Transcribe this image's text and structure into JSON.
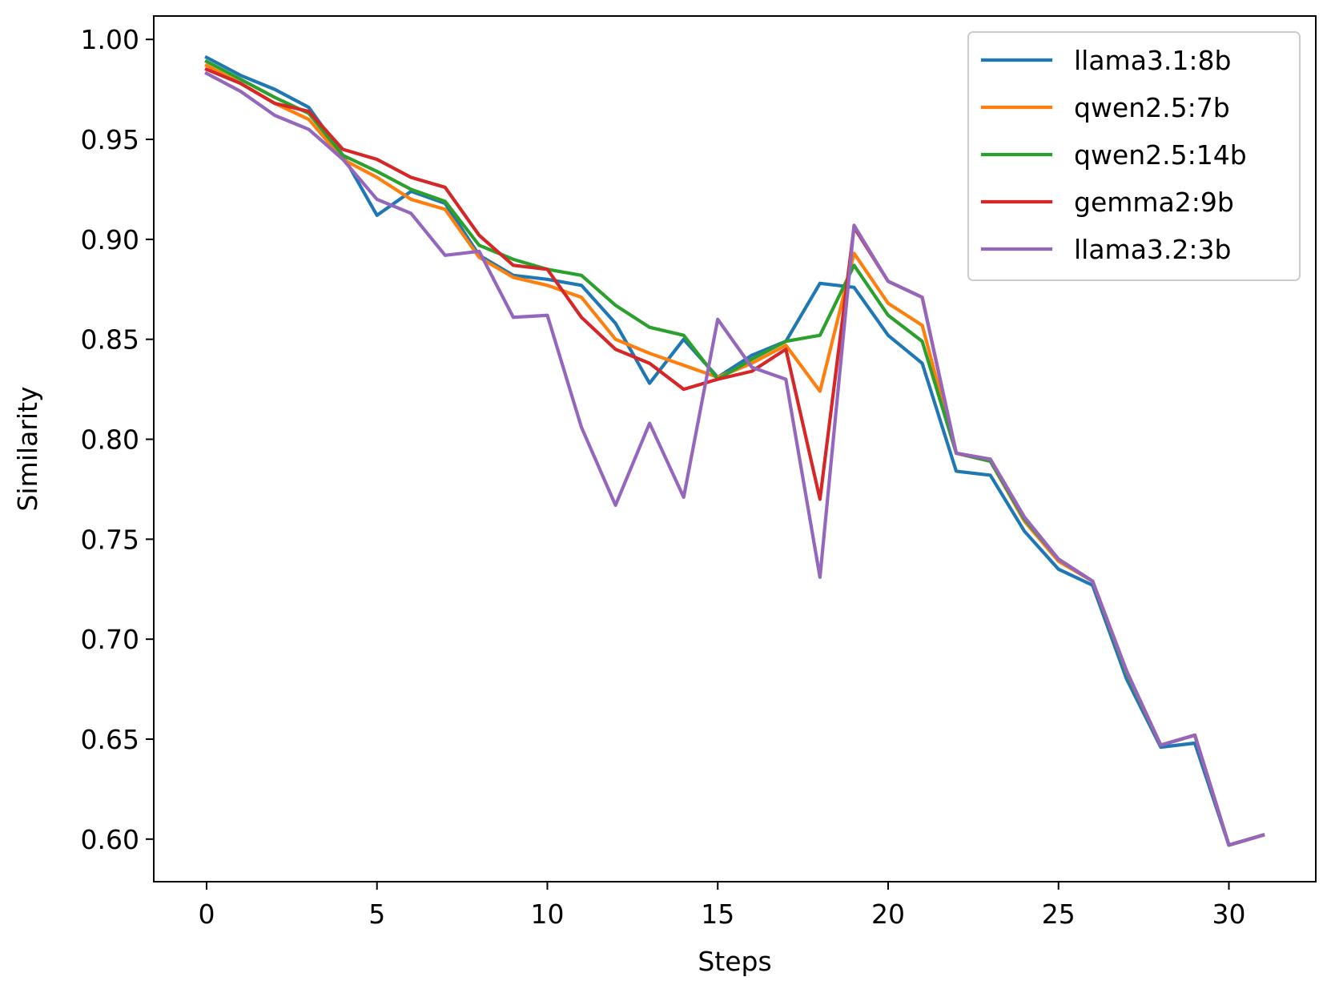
{
  "chart_data": {
    "type": "line",
    "title": "",
    "xlabel": "Steps",
    "ylabel": "Similarity",
    "xlim": [
      -1.55,
      32.55
    ],
    "ylim": [
      0.5787,
      1.0117
    ],
    "xticks": [
      0,
      5,
      10,
      15,
      20,
      25,
      30
    ],
    "yticks": [
      0.6,
      0.65,
      0.7,
      0.75,
      0.8,
      0.85,
      0.9,
      0.95,
      1.0
    ],
    "ytick_labels": [
      "0.60",
      "0.65",
      "0.70",
      "0.75",
      "0.80",
      "0.85",
      "0.90",
      "0.95",
      "1.00"
    ],
    "xtick_labels": [
      "0",
      "5",
      "10",
      "15",
      "20",
      "25",
      "30"
    ],
    "grid": false,
    "legend_position": "top-right",
    "x": [
      0,
      1,
      2,
      3,
      4,
      5,
      6,
      7,
      8,
      9,
      10,
      11,
      12,
      13,
      14,
      15,
      16,
      17,
      18,
      19,
      20,
      21,
      22,
      23,
      24,
      25,
      26,
      27,
      28,
      29,
      30,
      31
    ],
    "series": [
      {
        "name": "llama3.1:8b",
        "color": "#1f77b4",
        "values": [
          0.991,
          0.982,
          0.975,
          0.966,
          0.942,
          0.912,
          0.924,
          0.918,
          0.892,
          0.882,
          0.88,
          0.877,
          0.858,
          0.828,
          0.85,
          0.831,
          0.842,
          0.849,
          0.878,
          0.876,
          0.852,
          0.838,
          0.784,
          0.782,
          0.754,
          0.735,
          0.727,
          0.68,
          0.646,
          0.648,
          0.597,
          0.602
        ]
      },
      {
        "name": "qwen2.5:7b",
        "color": "#ff7f0e",
        "values": [
          0.987,
          0.978,
          0.968,
          0.96,
          0.94,
          0.931,
          0.92,
          0.915,
          0.891,
          0.881,
          0.877,
          0.871,
          0.85,
          0.843,
          0.837,
          0.831,
          0.838,
          0.847,
          0.824,
          0.893,
          0.868,
          0.857,
          0.793,
          0.789,
          0.759,
          0.739,
          0.729,
          0.683,
          0.647,
          0.652,
          0.597,
          0.602
        ]
      },
      {
        "name": "qwen2.5:14b",
        "color": "#2ca02c",
        "values": [
          0.989,
          0.98,
          0.971,
          0.963,
          0.942,
          0.934,
          0.925,
          0.919,
          0.897,
          0.89,
          0.885,
          0.882,
          0.867,
          0.856,
          0.852,
          0.83,
          0.84,
          0.849,
          0.852,
          0.887,
          0.862,
          0.849,
          0.793,
          0.789,
          0.76,
          0.74,
          0.729,
          0.683,
          0.647,
          0.652,
          0.597,
          0.602
        ]
      },
      {
        "name": "gemma2:9b",
        "color": "#d62728",
        "values": [
          0.985,
          0.978,
          0.968,
          0.964,
          0.945,
          0.94,
          0.931,
          0.926,
          0.902,
          0.887,
          0.885,
          0.861,
          0.845,
          0.838,
          0.825,
          0.83,
          0.834,
          0.845,
          0.77,
          0.906,
          0.879,
          0.871,
          0.793,
          0.79,
          0.761,
          0.74,
          0.729,
          0.684,
          0.647,
          0.652,
          0.597,
          0.602
        ]
      },
      {
        "name": "llama3.2:3b",
        "color": "#9467bd",
        "values": [
          0.983,
          0.974,
          0.962,
          0.955,
          0.94,
          0.92,
          0.913,
          0.892,
          0.894,
          0.861,
          0.862,
          0.806,
          0.767,
          0.808,
          0.771,
          0.86,
          0.836,
          0.83,
          0.731,
          0.907,
          0.879,
          0.871,
          0.793,
          0.79,
          0.761,
          0.74,
          0.729,
          0.684,
          0.647,
          0.652,
          0.597,
          0.602
        ]
      }
    ]
  }
}
